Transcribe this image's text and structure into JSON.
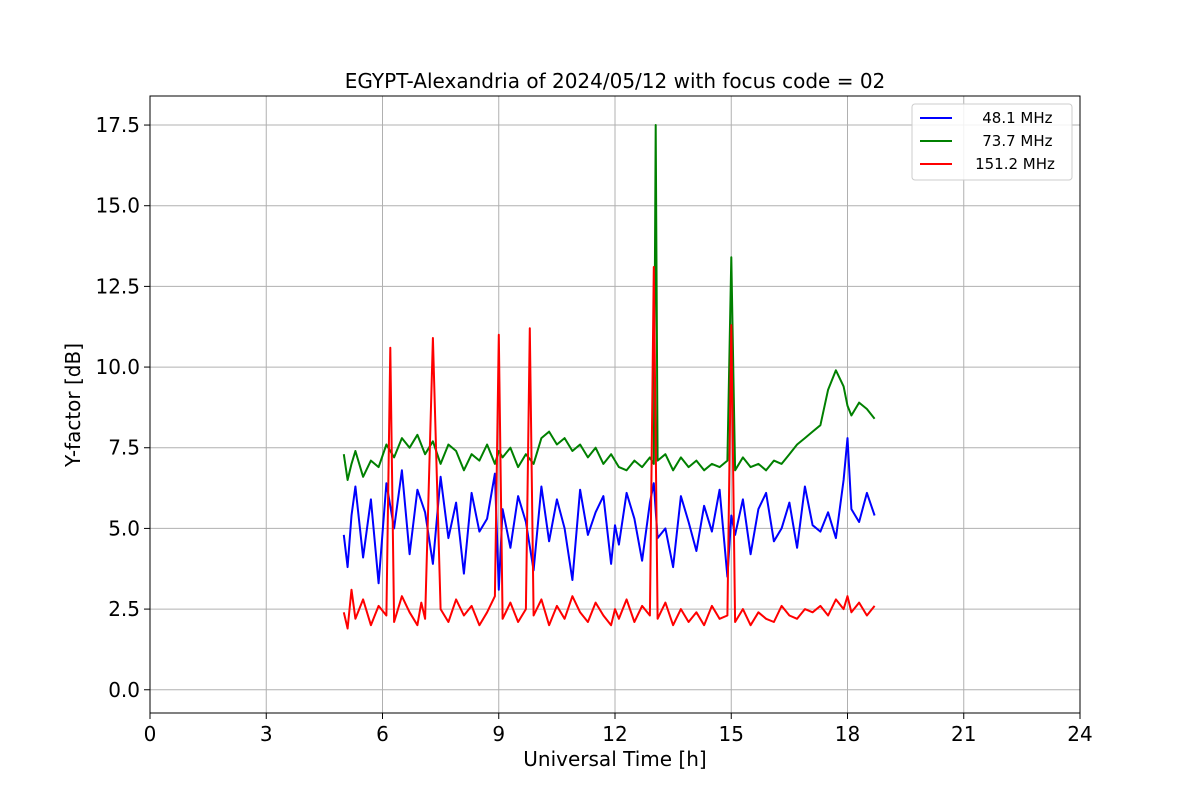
{
  "chart_data": {
    "type": "line",
    "title": "EGYPT-Alexandria of 2024/05/12 with focus code = 02",
    "xlabel": "Universal Time [h]",
    "ylabel": "Y-factor [dB]",
    "xlim": [
      0,
      24
    ],
    "ylim": [
      -0.72,
      18.4
    ],
    "xticks": [
      0,
      3,
      6,
      9,
      12,
      15,
      18,
      21,
      24
    ],
    "xtick_labels": [
      "0",
      "3",
      "6",
      "9",
      "12",
      "15",
      "18",
      "21",
      "24"
    ],
    "yticks": [
      0.0,
      2.5,
      5.0,
      7.5,
      10.0,
      12.5,
      15.0,
      17.5
    ],
    "ytick_labels": [
      "0.0",
      "2.5",
      "5.0",
      "7.5",
      "10.0",
      "12.5",
      "15.0",
      "17.5"
    ],
    "grid": true,
    "legend_position": "top-right",
    "series": [
      {
        "name": " 48.1 MHz",
        "color": "#0000ff",
        "x": [
          5.0,
          5.1,
          5.2,
          5.3,
          5.5,
          5.7,
          5.9,
          6.1,
          6.3,
          6.5,
          6.7,
          6.9,
          7.1,
          7.3,
          7.5,
          7.7,
          7.9,
          8.1,
          8.3,
          8.5,
          8.7,
          8.9,
          9.0,
          9.1,
          9.3,
          9.5,
          9.7,
          9.9,
          10.1,
          10.3,
          10.5,
          10.7,
          10.9,
          11.1,
          11.3,
          11.5,
          11.7,
          11.9,
          12.0,
          12.1,
          12.3,
          12.5,
          12.7,
          12.9,
          13.0,
          13.1,
          13.3,
          13.5,
          13.7,
          13.9,
          14.1,
          14.3,
          14.5,
          14.7,
          14.9,
          15.0,
          15.1,
          15.3,
          15.5,
          15.7,
          15.9,
          16.1,
          16.3,
          16.5,
          16.7,
          16.9,
          17.1,
          17.3,
          17.5,
          17.7,
          17.9,
          18.0,
          18.1,
          18.3,
          18.5,
          18.7
        ],
        "y": [
          4.8,
          3.8,
          5.4,
          6.3,
          4.1,
          5.9,
          3.3,
          6.4,
          5.0,
          6.8,
          4.2,
          6.2,
          5.5,
          3.9,
          6.6,
          4.7,
          5.8,
          3.6,
          6.1,
          4.9,
          5.3,
          6.7,
          3.1,
          5.6,
          4.4,
          6.0,
          5.2,
          3.7,
          6.3,
          4.6,
          5.9,
          5.0,
          3.4,
          6.2,
          4.8,
          5.5,
          6.0,
          3.9,
          5.1,
          4.5,
          6.1,
          5.3,
          4.0,
          5.8,
          6.4,
          4.7,
          5.0,
          3.8,
          6.0,
          5.2,
          4.3,
          5.7,
          4.9,
          6.2,
          3.5,
          5.4,
          4.8,
          5.9,
          4.2,
          5.6,
          6.1,
          4.6,
          5.0,
          5.8,
          4.4,
          6.3,
          5.1,
          4.9,
          5.5,
          4.7,
          6.5,
          7.8,
          5.6,
          5.2,
          6.1,
          5.4
        ]
      },
      {
        "name": " 73.7 MHz",
        "color": "#008000",
        "x": [
          5.0,
          5.1,
          5.2,
          5.3,
          5.5,
          5.7,
          5.9,
          6.1,
          6.3,
          6.5,
          6.7,
          6.9,
          7.1,
          7.3,
          7.5,
          7.7,
          7.9,
          8.1,
          8.3,
          8.5,
          8.7,
          8.9,
          9.0,
          9.1,
          9.3,
          9.5,
          9.7,
          9.9,
          10.1,
          10.3,
          10.5,
          10.7,
          10.9,
          11.1,
          11.3,
          11.5,
          11.7,
          11.9,
          12.0,
          12.1,
          12.3,
          12.5,
          12.7,
          12.9,
          13.0,
          13.05,
          13.1,
          13.3,
          13.5,
          13.7,
          13.9,
          14.1,
          14.3,
          14.5,
          14.7,
          14.9,
          15.0,
          15.1,
          15.3,
          15.5,
          15.7,
          15.9,
          16.1,
          16.3,
          16.5,
          16.7,
          16.9,
          17.1,
          17.3,
          17.5,
          17.7,
          17.9,
          18.0,
          18.1,
          18.3,
          18.5,
          18.7
        ],
        "y": [
          7.3,
          6.5,
          7.0,
          7.4,
          6.6,
          7.1,
          6.9,
          7.6,
          7.2,
          7.8,
          7.5,
          7.9,
          7.3,
          7.7,
          7.0,
          7.6,
          7.4,
          6.8,
          7.3,
          7.1,
          7.6,
          7.0,
          7.4,
          7.2,
          7.5,
          6.9,
          7.3,
          7.0,
          7.8,
          8.0,
          7.6,
          7.8,
          7.4,
          7.6,
          7.2,
          7.5,
          7.0,
          7.3,
          7.1,
          6.9,
          6.8,
          7.1,
          6.9,
          7.2,
          7.0,
          17.5,
          7.1,
          7.3,
          6.8,
          7.2,
          6.9,
          7.1,
          6.8,
          7.0,
          6.9,
          7.1,
          13.4,
          6.8,
          7.2,
          6.9,
          7.0,
          6.8,
          7.1,
          7.0,
          7.3,
          7.6,
          7.8,
          8.0,
          8.2,
          9.3,
          9.9,
          9.4,
          8.8,
          8.5,
          8.9,
          8.7,
          8.4
        ]
      },
      {
        "name": "151.2 MHz",
        "color": "#ff0000",
        "x": [
          5.0,
          5.1,
          5.2,
          5.3,
          5.5,
          5.7,
          5.9,
          6.1,
          6.2,
          6.3,
          6.5,
          6.7,
          6.9,
          7.0,
          7.1,
          7.3,
          7.5,
          7.7,
          7.9,
          8.1,
          8.3,
          8.5,
          8.7,
          8.9,
          9.0,
          9.1,
          9.3,
          9.5,
          9.7,
          9.8,
          9.9,
          10.1,
          10.3,
          10.5,
          10.7,
          10.9,
          11.1,
          11.3,
          11.5,
          11.7,
          11.9,
          12.0,
          12.1,
          12.3,
          12.5,
          12.7,
          12.9,
          13.0,
          13.1,
          13.3,
          13.5,
          13.7,
          13.9,
          14.1,
          14.3,
          14.5,
          14.7,
          14.9,
          15.0,
          15.1,
          15.3,
          15.5,
          15.7,
          15.9,
          16.1,
          16.3,
          16.5,
          16.7,
          16.9,
          17.1,
          17.3,
          17.5,
          17.7,
          17.9,
          18.0,
          18.1,
          18.3,
          18.5,
          18.7
        ],
        "y": [
          2.4,
          1.9,
          3.1,
          2.2,
          2.8,
          2.0,
          2.6,
          2.3,
          10.6,
          2.1,
          2.9,
          2.4,
          2.0,
          2.7,
          2.2,
          10.9,
          2.5,
          2.1,
          2.8,
          2.3,
          2.6,
          2.0,
          2.4,
          2.9,
          11.0,
          2.2,
          2.7,
          2.1,
          2.5,
          11.2,
          2.3,
          2.8,
          2.0,
          2.6,
          2.2,
          2.9,
          2.4,
          2.1,
          2.7,
          2.3,
          2.0,
          2.5,
          2.2,
          2.8,
          2.1,
          2.6,
          2.3,
          13.1,
          2.2,
          2.7,
          2.0,
          2.5,
          2.1,
          2.4,
          2.0,
          2.6,
          2.2,
          2.3,
          11.3,
          2.1,
          2.5,
          2.0,
          2.4,
          2.2,
          2.1,
          2.6,
          2.3,
          2.2,
          2.5,
          2.4,
          2.6,
          2.3,
          2.8,
          2.5,
          2.9,
          2.4,
          2.7,
          2.3,
          2.6
        ]
      }
    ]
  }
}
